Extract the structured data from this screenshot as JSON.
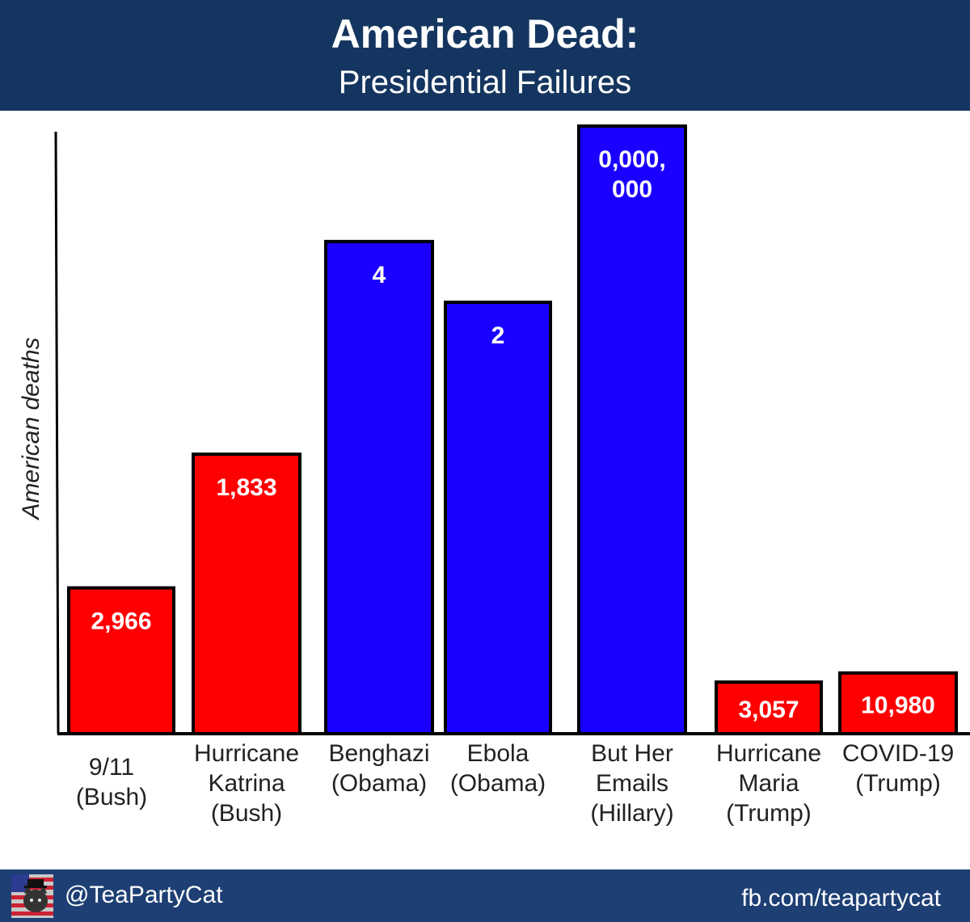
{
  "header": {
    "title": "American Dead:",
    "subtitle": "Presidential Failures"
  },
  "chart_data": {
    "type": "bar",
    "title": "American Dead:",
    "subtitle": "Presidential Failures",
    "ylabel": "American deaths",
    "xlabel": "",
    "categories": [
      "9/11 (Bush)",
      "Hurricane Katrina (Bush)",
      "Benghazi (Obama)",
      "Ebola (Obama)",
      "But Her Emails (Hillary)",
      "Hurricane Maria (Trump)",
      "COVID-19 (Trump)"
    ],
    "category_lines": [
      [
        "9/11",
        "(Bush)"
      ],
      [
        "Hurricane",
        "Katrina",
        "(Bush)"
      ],
      [
        "Benghazi",
        "(Obama)"
      ],
      [
        "Ebola",
        "(Obama)"
      ],
      [
        "But Her",
        "Emails",
        "(Hillary)"
      ],
      [
        "Hurricane",
        "Maria",
        "(Trump)"
      ],
      [
        "COVID-19",
        "(Trump)"
      ]
    ],
    "data_labels": [
      [
        "2,966"
      ],
      [
        "1,833"
      ],
      [
        "4"
      ],
      [
        "2"
      ],
      [
        "0,000,",
        "000"
      ],
      [
        "3,057"
      ],
      [
        "10,980"
      ]
    ],
    "values": [
      2966,
      1833,
      4,
      2,
      0,
      3057,
      10980
    ],
    "relative_heights": [
      0.24,
      0.46,
      0.81,
      0.71,
      1.0,
      0.085,
      0.1
    ],
    "colors": [
      "#ff0000",
      "#ff0000",
      "#1a00ff",
      "#1a00ff",
      "#1a00ff",
      "#ff0000",
      "#ff0000"
    ],
    "axis_units": "none shown (bar heights are not to scale)",
    "grid": false,
    "legend": "none"
  },
  "footer": {
    "handle": "@TeaPartyCat",
    "link": "fb.com/teapartycat",
    "avatar_icon": "cat-avatar-icon"
  },
  "colors": {
    "header_bg": "#14355f",
    "footer_bg": "#1d3f73",
    "red": "#ff0000",
    "blue": "#1a00ff"
  }
}
